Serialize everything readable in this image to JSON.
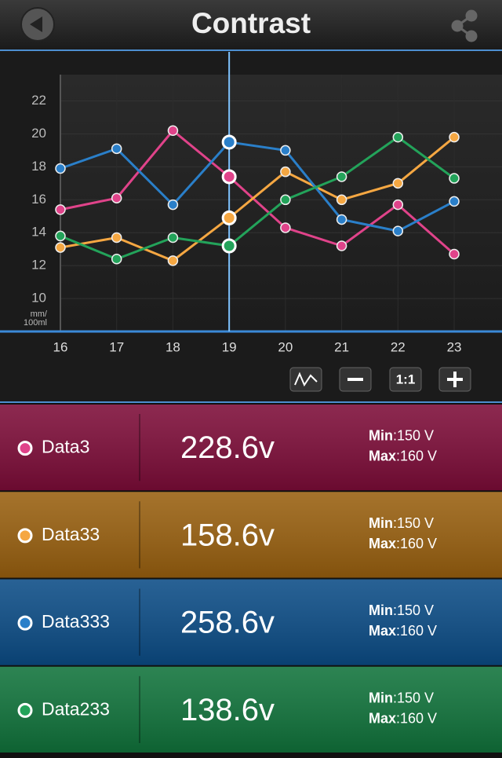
{
  "header": {
    "title": "Contrast"
  },
  "chart_data": {
    "type": "line",
    "x": [
      16,
      17,
      18,
      19,
      20,
      21,
      22,
      23
    ],
    "xlim": [
      16,
      23.85
    ],
    "ylim": [
      8,
      23.6
    ],
    "xticks": [
      16,
      17,
      18,
      19,
      20,
      21,
      22,
      23
    ],
    "yticks": [
      10,
      12,
      14,
      16,
      18,
      20,
      22
    ],
    "ylabel": [
      "mm/",
      "100ml"
    ],
    "grid": true,
    "highlight_x": 19,
    "series": [
      {
        "name": "Data3",
        "color": "#e0438a",
        "values": [
          15.4,
          16.1,
          20.2,
          17.4,
          14.3,
          13.2,
          15.7,
          12.7
        ]
      },
      {
        "name": "Data33",
        "color": "#f5a742",
        "values": [
          13.1,
          13.7,
          12.3,
          14.9,
          17.7,
          16.0,
          17.0,
          19.8
        ]
      },
      {
        "name": "Data333",
        "color": "#2a7fc9",
        "values": [
          17.9,
          19.1,
          15.7,
          19.5,
          19.0,
          14.8,
          14.1,
          15.9
        ]
      },
      {
        "name": "Data233",
        "color": "#23a35a",
        "values": [
          13.8,
          12.4,
          13.7,
          13.2,
          16.0,
          17.4,
          19.8,
          17.3
        ]
      }
    ]
  },
  "controls": {
    "zoom_reset": "1:1"
  },
  "cards": [
    {
      "value": "228.6v",
      "background": "#7d0c38",
      "min_label": "Min",
      "min": ":150 V",
      "max_label": "Max",
      "max": ":160 V"
    },
    {
      "value": "158.6v",
      "background": "#99600f",
      "min_label": "Min",
      "min": ":150 V",
      "max_label": "Max",
      "max": ":160 V"
    },
    {
      "value": "258.6v",
      "background": "#0b4c86",
      "min_label": "Min",
      "min": ":150 V",
      "max_label": "Max",
      "max": ":160 V"
    },
    {
      "value": "138.6v",
      "background": "#10733b",
      "min_label": "Min",
      "min": ":150 V",
      "max_label": "Max",
      "max": ":160 V"
    }
  ]
}
